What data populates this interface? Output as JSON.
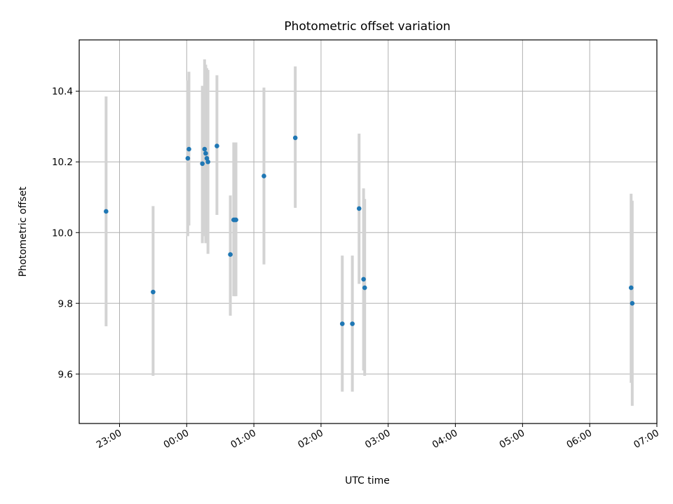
{
  "chart_data": {
    "type": "scatter",
    "title": "Photometric offset variation",
    "xlabel": "UTC time",
    "ylabel": "Photometric offset",
    "x_unit": "time",
    "xlim": [
      "22:24",
      "07:00"
    ],
    "ylim": [
      9.46,
      10.545
    ],
    "xticks": [
      "23:00",
      "00:00",
      "01:00",
      "02:00",
      "03:00",
      "04:00",
      "05:00",
      "06:00",
      "07:00"
    ],
    "yticks": [
      "9.6",
      "9.8",
      "10.0",
      "10.2",
      "10.4"
    ],
    "grid": true,
    "points": [
      {
        "time": "22:48",
        "offset": 10.06,
        "err_low": 9.735,
        "err_high": 10.385
      },
      {
        "time": "23:30",
        "offset": 9.832,
        "err_low": 9.595,
        "err_high": 10.075
      },
      {
        "time": "00:01",
        "offset": 10.21,
        "err_low": 9.99,
        "err_high": 10.43
      },
      {
        "time": "00:02",
        "offset": 10.236,
        "err_low": 10.02,
        "err_high": 10.455
      },
      {
        "time": "00:14",
        "offset": 10.195,
        "err_low": 9.97,
        "err_high": 10.415
      },
      {
        "time": "00:16",
        "offset": 10.236,
        "err_low": 9.99,
        "err_high": 10.49
      },
      {
        "time": "00:17",
        "offset": 10.224,
        "err_low": 9.97,
        "err_high": 10.475
      },
      {
        "time": "00:18",
        "offset": 10.21,
        "err_low": 9.98,
        "err_high": 10.465
      },
      {
        "time": "00:19",
        "offset": 10.2,
        "err_low": 9.94,
        "err_high": 10.46
      },
      {
        "time": "00:27",
        "offset": 10.245,
        "err_low": 10.05,
        "err_high": 10.445
      },
      {
        "time": "00:39",
        "offset": 9.938,
        "err_low": 9.765,
        "err_high": 10.105
      },
      {
        "time": "00:42",
        "offset": 10.036,
        "err_low": 9.82,
        "err_high": 10.255
      },
      {
        "time": "00:43",
        "offset": 10.036,
        "err_low": 9.82,
        "err_high": 10.255
      },
      {
        "time": "00:44",
        "offset": 10.036,
        "err_low": 9.82,
        "err_high": 10.255
      },
      {
        "time": "01:09",
        "offset": 10.16,
        "err_low": 9.91,
        "err_high": 10.41
      },
      {
        "time": "01:37",
        "offset": 10.268,
        "err_low": 10.07,
        "err_high": 10.47
      },
      {
        "time": "02:19",
        "offset": 9.742,
        "err_low": 9.55,
        "err_high": 9.935
      },
      {
        "time": "02:28",
        "offset": 9.742,
        "err_low": 9.55,
        "err_high": 9.935
      },
      {
        "time": "02:34",
        "offset": 10.068,
        "err_low": 9.855,
        "err_high": 10.28
      },
      {
        "time": "02:38",
        "offset": 9.868,
        "err_low": 9.61,
        "err_high": 10.125
      },
      {
        "time": "02:39",
        "offset": 9.844,
        "err_low": 9.595,
        "err_high": 10.095
      },
      {
        "time": "06:37",
        "offset": 9.844,
        "err_low": 9.575,
        "err_high": 10.11
      },
      {
        "time": "06:38",
        "offset": 9.8,
        "err_low": 9.51,
        "err_high": 10.09
      }
    ],
    "colors": {
      "point": "#1f77b4",
      "errorbar": "#d3d3d3",
      "grid": "#b0b0b0"
    }
  }
}
